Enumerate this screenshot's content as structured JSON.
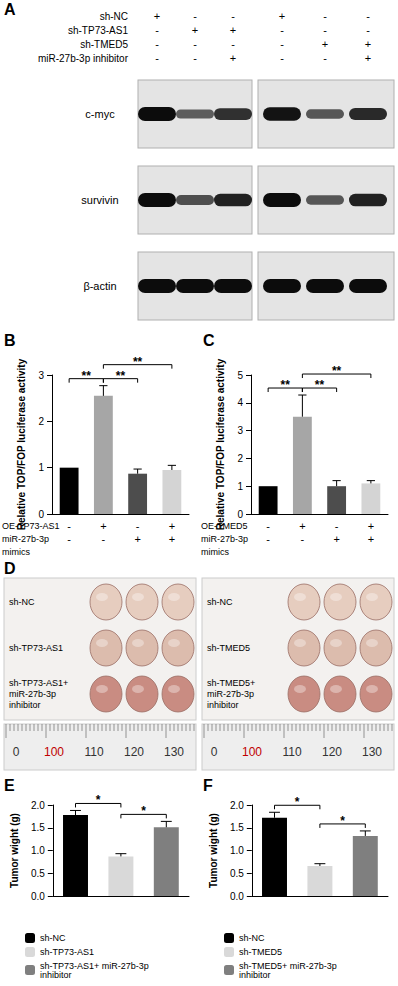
{
  "panel_A": {
    "label": "A",
    "conditions": [
      {
        "label": "sh-NC",
        "marks": [
          "+",
          "-",
          "-",
          "+",
          "-",
          "-"
        ]
      },
      {
        "label": "sh-TP73-AS1",
        "marks": [
          "-",
          "+",
          "+",
          "-",
          "-",
          "-"
        ]
      },
      {
        "label": "sh-TMED5",
        "marks": [
          "-",
          "-",
          "-",
          "-",
          "+",
          "+"
        ]
      },
      {
        "label": "miR-27b-3p inhibitor",
        "marks": [
          "-",
          "-",
          "+",
          "-",
          "-",
          "+"
        ]
      }
    ],
    "blots": [
      {
        "label": "c-myc",
        "band_intensity": [
          1,
          0.45,
          0.75,
          0.95,
          0.5,
          0.8
        ]
      },
      {
        "label": "survivin",
        "band_intensity": [
          1,
          0.55,
          0.85,
          1,
          0.5,
          0.85
        ]
      },
      {
        "label": "β-actin",
        "band_intensity": [
          1,
          1,
          1,
          1,
          1,
          1
        ]
      }
    ]
  },
  "chart_data": [
    {
      "panel": "B",
      "type": "bar",
      "categories": [
        null,
        null,
        null,
        null
      ],
      "values": [
        1,
        2.55,
        0.87,
        0.95
      ],
      "errors": [
        0,
        0.22,
        0.1,
        0.1
      ],
      "colors": [
        "#000000",
        "#a6a6a6",
        "#4d4d4d",
        "#d4d4d4"
      ],
      "y_label": "Relative TOP/FOP luciferase activity",
      "ylim": [
        0,
        3
      ],
      "yticks": [
        0,
        1,
        2,
        3
      ],
      "grid": false,
      "conditions": [
        {
          "label": "OE-TP73-AS1",
          "marks": [
            "-",
            "+",
            "-",
            "+"
          ]
        },
        {
          "label": "miR-27b-3p mimics",
          "marks": [
            "-",
            "-",
            "+",
            "+"
          ]
        }
      ],
      "significance": [
        {
          "from": 0,
          "to": 1,
          "label": "**"
        },
        {
          "from": 1,
          "to": 2,
          "label": "**"
        },
        {
          "from": 1,
          "to": 3,
          "label": "**"
        }
      ]
    },
    {
      "panel": "C",
      "type": "bar",
      "categories": [
        null,
        null,
        null,
        null
      ],
      "values": [
        1,
        3.5,
        1.0,
        1.1
      ],
      "errors": [
        0,
        0.78,
        0.2,
        0.1
      ],
      "colors": [
        "#000000",
        "#a6a6a6",
        "#4d4d4d",
        "#d4d4d4"
      ],
      "y_label": "Relative TOP/FOP luciferase activity",
      "ylim": [
        0,
        5
      ],
      "yticks": [
        0,
        1,
        2,
        3,
        4,
        5
      ],
      "grid": false,
      "conditions": [
        {
          "label": "OE-TMED5",
          "marks": [
            "-",
            "+",
            "-",
            "+"
          ]
        },
        {
          "label": "miR-27b-3p mimics",
          "marks": [
            "-",
            "-",
            "+",
            "+"
          ]
        }
      ],
      "significance": [
        {
          "from": 0,
          "to": 1,
          "label": "**"
        },
        {
          "from": 1,
          "to": 2,
          "label": "**"
        },
        {
          "from": 1,
          "to": 3,
          "label": "**"
        }
      ]
    },
    {
      "panel": "E",
      "type": "bar",
      "categories": [
        "sh-NC",
        "sh-TP73-AS1",
        "sh-TP73-AS1+ miR-27b-3p inhibitor"
      ],
      "values": [
        1.78,
        0.87,
        1.51
      ],
      "errors": [
        0.1,
        0.06,
        0.13
      ],
      "colors": [
        "#000000",
        "#d9d9d9",
        "#7f7f7f"
      ],
      "y_label": "Tumor wight (g)",
      "ylim": [
        0,
        2
      ],
      "yticks": [
        {
          "value": 0,
          "label": "0.0"
        },
        {
          "value": 0.5,
          "label": "0.5"
        },
        {
          "value": 1,
          "label": "1.0"
        },
        {
          "value": 1.5,
          "label": "1.5"
        },
        {
          "value": 2,
          "label": "2.0"
        }
      ],
      "grid": false,
      "legend": "bottom",
      "tick_labels": "y",
      "significance": [
        {
          "from": 0,
          "to": 1,
          "label": "*"
        },
        {
          "from": 1,
          "to": 2,
          "label": "*"
        }
      ]
    },
    {
      "panel": "F",
      "type": "bar",
      "categories": [
        "sh-NC",
        "sh-TMED5",
        "sh-TMED5+ miR-27b-3p inhibitor"
      ],
      "values": [
        1.72,
        0.66,
        1.32
      ],
      "errors": [
        0.12,
        0.05,
        0.11
      ],
      "colors": [
        "#000000",
        "#d9d9d9",
        "#7f7f7f"
      ],
      "y_label": "Tumor wight (g)",
      "ylim": [
        0,
        2
      ],
      "yticks": [
        {
          "value": 0,
          "label": "0.0"
        },
        {
          "value": 0.5,
          "label": "0.5"
        },
        {
          "value": 1,
          "label": "1.0"
        },
        {
          "value": 1.5,
          "label": "1.5"
        },
        {
          "value": 2,
          "label": "2.0"
        }
      ],
      "grid": false,
      "legend": "bottom",
      "tick_labels": "y",
      "significance": [
        {
          "from": 0,
          "to": 1,
          "label": "*"
        },
        {
          "from": 1,
          "to": 2,
          "label": "*"
        }
      ]
    }
  ],
  "panel_D": {
    "label": "D",
    "tumors_per_group": 3,
    "photos": [
      {
        "rows": [
          "sh-NC",
          "sh-TP73-AS1",
          "sh-TP73-AS1+ miR-27b-3p inhibitor"
        ],
        "ruler": [
          0,
          100,
          110,
          120,
          130
        ]
      },
      {
        "rows": [
          "sh-NC",
          "sh-TMED5",
          "sh-TMED5+ miR-27b-3p inhibitor"
        ],
        "ruler": [
          0,
          100,
          110,
          120,
          130
        ]
      }
    ]
  }
}
